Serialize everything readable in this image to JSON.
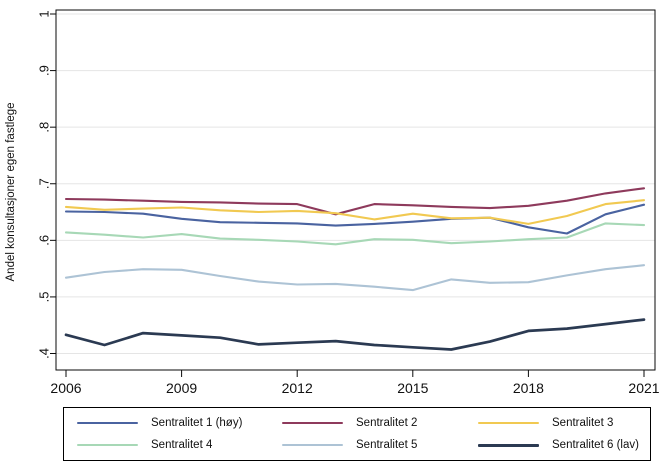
{
  "chart_data": {
    "type": "line",
    "ylabel": "Andel konsultasjoner egen fastlege",
    "xlabel": "",
    "x_range": [
      2006,
      2021
    ],
    "ylim": [
      0.4,
      1.0
    ],
    "grid": true,
    "legend_position": "bottom",
    "ytick_values": [
      0.4,
      0.5,
      0.6,
      0.7,
      0.8,
      0.9,
      1.0
    ],
    "ytick_labels": [
      ".4",
      ".5",
      ".6",
      ".7",
      ".8",
      ".9",
      "1"
    ],
    "xtick_values": [
      2006,
      2009,
      2012,
      2015,
      2018,
      2021
    ],
    "xtick_labels": [
      "2006",
      "2009",
      "2012",
      "2015",
      "2018",
      "2021"
    ],
    "years": [
      2006,
      2007,
      2008,
      2009,
      2010,
      2011,
      2012,
      2013,
      2014,
      2015,
      2016,
      2017,
      2018,
      2019,
      2020,
      2021
    ],
    "colors": {
      "grid": "#e5e5e5",
      "axis": "#0a0a0a",
      "background": "#ffffff"
    },
    "series": [
      {
        "name": "Sentralitet 1 (høy)",
        "color": "#4a63a0",
        "values": [
          0.651,
          0.65,
          0.647,
          0.638,
          0.632,
          0.631,
          0.63,
          0.626,
          0.629,
          0.633,
          0.638,
          0.64,
          0.623,
          0.612,
          0.646,
          0.663
        ]
      },
      {
        "name": "Sentralitet 2",
        "color": "#8e3a5c",
        "values": [
          0.673,
          0.672,
          0.67,
          0.668,
          0.667,
          0.665,
          0.664,
          0.646,
          0.664,
          0.662,
          0.659,
          0.657,
          0.661,
          0.67,
          0.683,
          0.692
        ]
      },
      {
        "name": "Sentralitet 3",
        "color": "#f1c951",
        "values": [
          0.659,
          0.654,
          0.656,
          0.658,
          0.653,
          0.65,
          0.652,
          0.648,
          0.637,
          0.647,
          0.639,
          0.64,
          0.629,
          0.643,
          0.664,
          0.671
        ]
      },
      {
        "name": "Sentralitet 4",
        "color": "#a7d8b6",
        "values": [
          0.614,
          0.61,
          0.605,
          0.611,
          0.603,
          0.601,
          0.598,
          0.593,
          0.602,
          0.601,
          0.595,
          0.598,
          0.602,
          0.605,
          0.63,
          0.627
        ]
      },
      {
        "name": "Sentralitet 5",
        "color": "#adc3d5",
        "values": [
          0.534,
          0.544,
          0.549,
          0.548,
          0.537,
          0.527,
          0.522,
          0.523,
          0.518,
          0.512,
          0.531,
          0.525,
          0.526,
          0.538,
          0.549,
          0.556
        ]
      },
      {
        "name": "Sentralitet 6 (lav)",
        "color": "#2b3a52",
        "values": [
          0.433,
          0.415,
          0.436,
          0.432,
          0.428,
          0.416,
          0.419,
          0.422,
          0.415,
          0.411,
          0.407,
          0.421,
          0.44,
          0.444,
          0.452,
          0.46
        ]
      }
    ]
  }
}
